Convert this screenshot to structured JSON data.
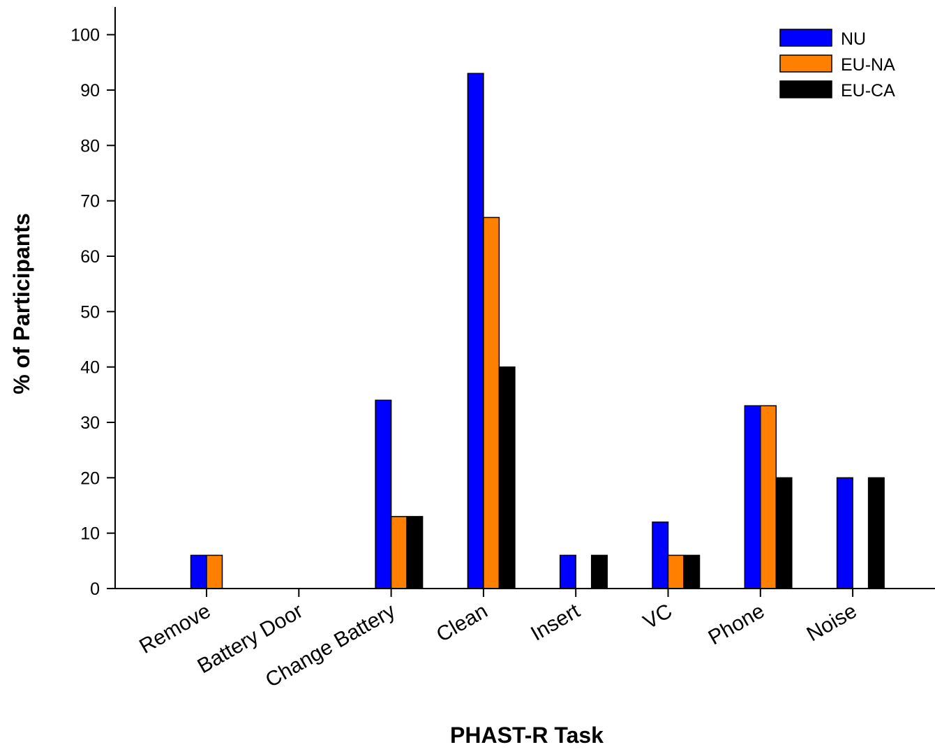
{
  "chart_data": {
    "type": "bar",
    "title": "",
    "xlabel": "PHAST-R Task",
    "ylabel": "% of Participants",
    "categories": [
      "Remove",
      "Battery Door",
      "Change Battery",
      "Clean",
      "Insert",
      "VC",
      "Phone",
      "Noise"
    ],
    "series": [
      {
        "name": "NU",
        "color": "#0000ff",
        "values": [
          6,
          0,
          34,
          93,
          6,
          12,
          33,
          20
        ]
      },
      {
        "name": "EU-NA",
        "color": "#ff8000",
        "values": [
          6,
          0,
          13,
          67,
          0,
          6,
          33,
          0
        ]
      },
      {
        "name": "EU-CA",
        "color": "#000000",
        "values": [
          0,
          0,
          13,
          40,
          6,
          6,
          20,
          20
        ]
      }
    ],
    "ylim": [
      0,
      105
    ],
    "yticks": [
      0,
      10,
      20,
      30,
      40,
      50,
      60,
      70,
      80,
      90,
      100
    ],
    "legend_position": "top-right",
    "grid": false
  }
}
